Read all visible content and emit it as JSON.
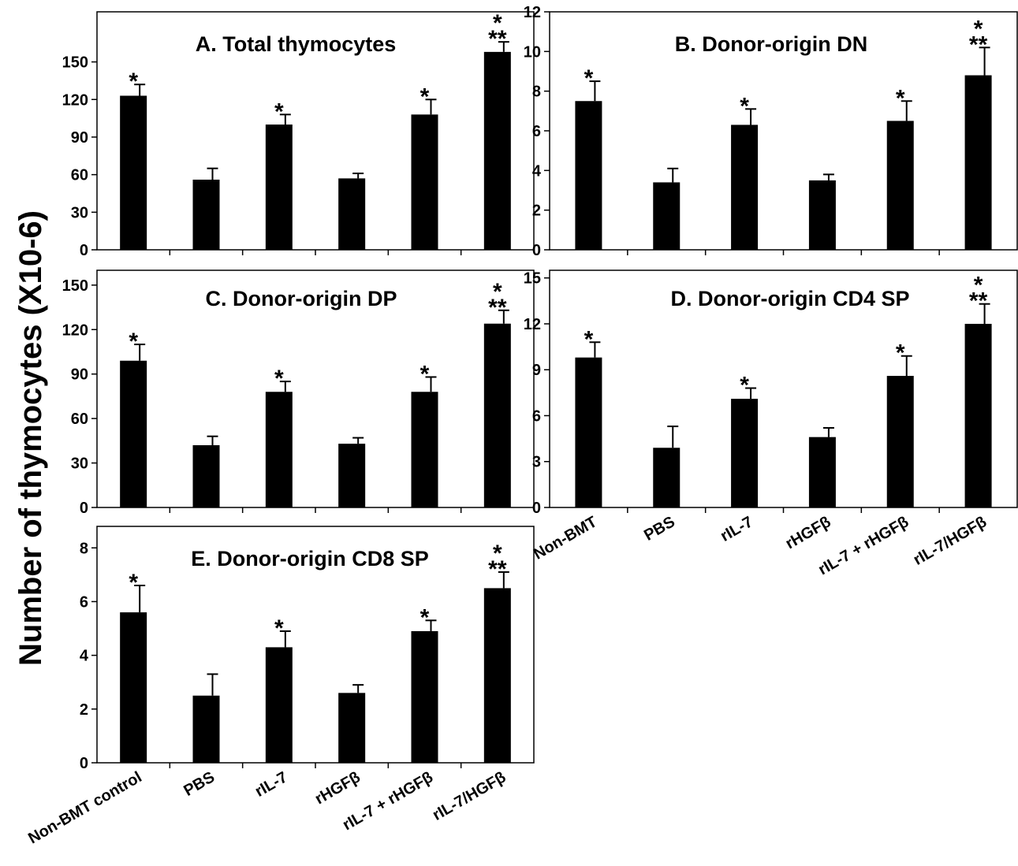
{
  "figure": {
    "ylabel": "Number of thymocytes (X10-6)"
  },
  "chart_data": [
    {
      "type": "bar",
      "title": "A.  Total thymocytes",
      "categories": [
        "Non-BMT control",
        "PBS",
        "rIL-7",
        "rHGFβ",
        "rIL-7 + rHGFβ",
        "rIL-7/HGFβ"
      ],
      "values": [
        123,
        56,
        100,
        57,
        108,
        158
      ],
      "errors": [
        9,
        9,
        8,
        4,
        12,
        8
      ],
      "annotations": [
        "*",
        "",
        "*",
        "",
        "*",
        "*\n**"
      ],
      "yticks": [
        0,
        30,
        60,
        90,
        120,
        150
      ],
      "ylim": [
        0,
        190
      ],
      "xlabel": "",
      "ylabel": "",
      "grid": false,
      "legend": "none",
      "bar_color": "#000000"
    },
    {
      "type": "bar",
      "title": "B.  Donor-origin DN",
      "categories": [
        "Non-BMT",
        "PBS",
        "rIL-7",
        "rHGFβ",
        "rIL-7 + rHGFβ",
        "rIL-7/HGFβ"
      ],
      "values": [
        7.5,
        3.4,
        6.3,
        3.5,
        6.5,
        8.8
      ],
      "errors": [
        1.0,
        0.7,
        0.8,
        0.3,
        1.0,
        1.4
      ],
      "annotations": [
        "*",
        "",
        "*",
        "",
        "*",
        "*\n**"
      ],
      "yticks": [
        0,
        2,
        4,
        6,
        8,
        10,
        12
      ],
      "ylim": [
        0,
        12
      ],
      "xlabel": "",
      "ylabel": "",
      "grid": false,
      "legend": "none",
      "bar_color": "#000000"
    },
    {
      "type": "bar",
      "title": "C.  Donor-origin DP",
      "categories": [
        "Non-BMT control",
        "PBS",
        "rIL-7",
        "rHGFβ",
        "rIL-7 + rHGFβ",
        "rIL-7/HGFβ"
      ],
      "values": [
        99,
        42,
        78,
        43,
        78,
        124
      ],
      "errors": [
        11,
        6,
        7,
        4,
        10,
        9
      ],
      "annotations": [
        "*",
        "",
        "*",
        "",
        "*",
        "*\n**"
      ],
      "yticks": [
        0,
        30,
        60,
        90,
        120,
        150
      ],
      "ylim": [
        0,
        160
      ],
      "xlabel": "",
      "ylabel": "",
      "grid": false,
      "legend": "none",
      "bar_color": "#000000"
    },
    {
      "type": "bar",
      "title": "D.  Donor-origin CD4 SP",
      "categories": [
        "Non-BMT",
        "PBS",
        "rIL-7",
        "rHGFβ",
        "rIL-7 + rHGFβ",
        "rIL-7/HGFβ"
      ],
      "values": [
        9.8,
        3.9,
        7.1,
        4.6,
        8.6,
        12.0
      ],
      "errors": [
        1.0,
        1.4,
        0.7,
        0.6,
        1.3,
        1.3
      ],
      "annotations": [
        "*",
        "",
        "*",
        "",
        "*",
        "*\n**"
      ],
      "yticks": [
        0,
        3,
        6,
        9,
        12,
        15
      ],
      "ylim": [
        0,
        15.5
      ],
      "xlabel": "",
      "ylabel": "",
      "grid": false,
      "legend": "none",
      "bar_color": "#000000"
    },
    {
      "type": "bar",
      "title": "E.  Donor-origin CD8 SP",
      "categories": [
        "Non-BMT control",
        "PBS",
        "rIL-7",
        "rHGFβ",
        "rIL-7 + rHGFβ",
        "rIL-7/HGFβ"
      ],
      "values": [
        5.6,
        2.5,
        4.3,
        2.6,
        4.9,
        6.5
      ],
      "errors": [
        1.0,
        0.8,
        0.6,
        0.3,
        0.4,
        0.6
      ],
      "annotations": [
        "*",
        "",
        "*",
        "",
        "*",
        "*\n**"
      ],
      "yticks": [
        0,
        2,
        4,
        6,
        8
      ],
      "ylim": [
        0,
        8.8
      ],
      "xlabel": "",
      "ylabel": "",
      "grid": false,
      "legend": "none",
      "bar_color": "#000000"
    }
  ]
}
